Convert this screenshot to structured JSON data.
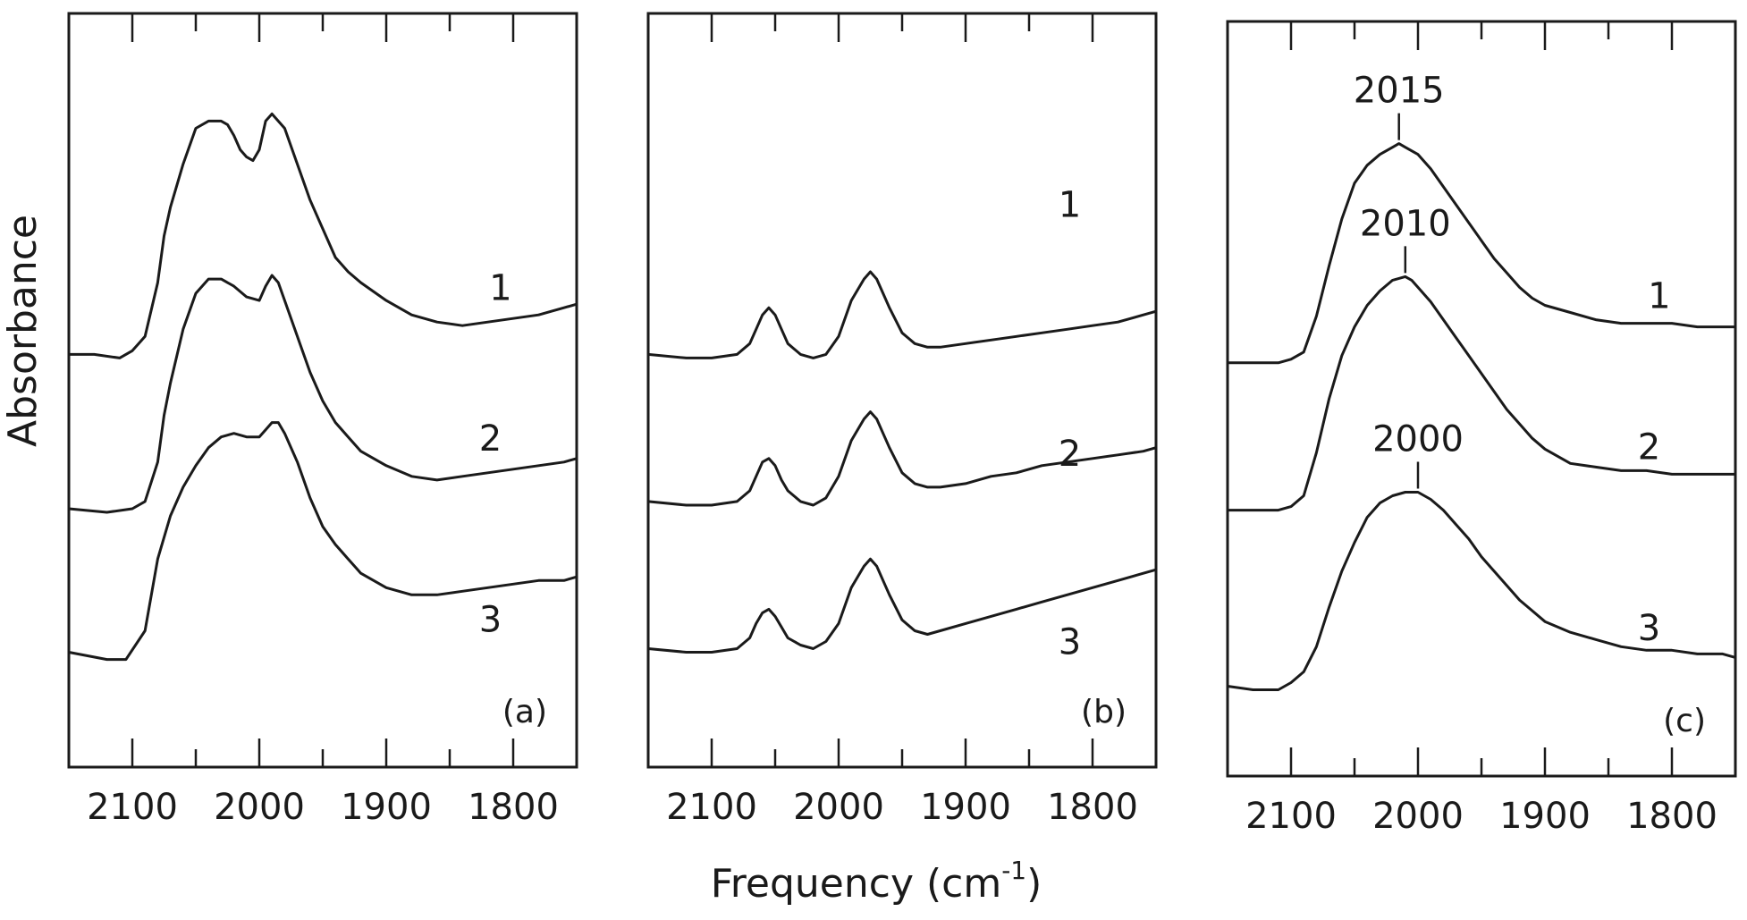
{
  "figure": {
    "ylabel": "Absorbance",
    "xlabel_main": "Frequency  (cm",
    "xlabel_sup": "-1",
    "xlabel_end": ")"
  },
  "chart_data": [
    {
      "type": "line",
      "panel_label": "(a)",
      "xlim": [
        2150,
        1750
      ],
      "xticks_major": [
        2100,
        2000,
        1900,
        1800
      ],
      "tick_labels": [
        "2100",
        "2000",
        "1900",
        "1800"
      ],
      "series": [
        {
          "name": "1",
          "x": [
            2150,
            2130,
            2110,
            2100,
            2090,
            2080,
            2075,
            2070,
            2060,
            2050,
            2040,
            2030,
            2025,
            2020,
            2015,
            2010,
            2005,
            2000,
            1995,
            1990,
            1980,
            1970,
            1960,
            1950,
            1940,
            1930,
            1920,
            1900,
            1880,
            1860,
            1840,
            1820,
            1800,
            1780,
            1760,
            1750
          ],
          "y": [
            0.55,
            0.55,
            0.54,
            0.56,
            0.6,
            0.75,
            0.88,
            0.96,
            1.08,
            1.18,
            1.2,
            1.2,
            1.19,
            1.16,
            1.12,
            1.1,
            1.09,
            1.12,
            1.2,
            1.22,
            1.18,
            1.08,
            0.98,
            0.9,
            0.82,
            0.78,
            0.75,
            0.7,
            0.66,
            0.64,
            0.63,
            0.64,
            0.65,
            0.66,
            0.68,
            0.69
          ]
        },
        {
          "name": "2",
          "x": [
            2150,
            2120,
            2100,
            2090,
            2080,
            2075,
            2070,
            2060,
            2050,
            2040,
            2030,
            2020,
            2010,
            2000,
            1995,
            1990,
            1985,
            1980,
            1970,
            1960,
            1950,
            1940,
            1930,
            1920,
            1900,
            1880,
            1860,
            1840,
            1820,
            1800,
            1780,
            1760,
            1750
          ],
          "y": [
            0.12,
            0.11,
            0.12,
            0.14,
            0.25,
            0.38,
            0.47,
            0.62,
            0.72,
            0.76,
            0.76,
            0.74,
            0.71,
            0.7,
            0.74,
            0.77,
            0.75,
            0.7,
            0.6,
            0.5,
            0.42,
            0.36,
            0.32,
            0.28,
            0.24,
            0.21,
            0.2,
            0.21,
            0.22,
            0.23,
            0.24,
            0.25,
            0.26
          ]
        },
        {
          "name": "3",
          "x": [
            2150,
            2120,
            2105,
            2090,
            2080,
            2070,
            2060,
            2050,
            2040,
            2030,
            2020,
            2010,
            2000,
            1995,
            1990,
            1985,
            1980,
            1970,
            1960,
            1950,
            1940,
            1930,
            1920,
            1900,
            1880,
            1860,
            1840,
            1820,
            1800,
            1780,
            1760,
            1750
          ],
          "y": [
            -0.28,
            -0.3,
            -0.3,
            -0.22,
            -0.02,
            0.1,
            0.18,
            0.24,
            0.29,
            0.32,
            0.33,
            0.32,
            0.32,
            0.34,
            0.36,
            0.36,
            0.33,
            0.25,
            0.15,
            0.07,
            0.02,
            -0.02,
            -0.06,
            -0.1,
            -0.12,
            -0.12,
            -0.11,
            -0.1,
            -0.09,
            -0.08,
            -0.08,
            -0.07
          ]
        }
      ]
    },
    {
      "type": "line",
      "panel_label": "(b)",
      "xlim": [
        2150,
        1750
      ],
      "xticks_major": [
        2100,
        2000,
        1900,
        1800
      ],
      "tick_labels": [
        "2100",
        "2000",
        "1900",
        "1800"
      ],
      "series": [
        {
          "name": "1",
          "x": [
            2150,
            2120,
            2100,
            2080,
            2070,
            2065,
            2060,
            2055,
            2050,
            2045,
            2040,
            2030,
            2020,
            2010,
            2000,
            1990,
            1980,
            1975,
            1970,
            1965,
            1960,
            1950,
            1940,
            1930,
            1920,
            1900,
            1880,
            1860,
            1840,
            1820,
            1800,
            1780,
            1760,
            1750
          ],
          "y": [
            0.55,
            0.54,
            0.54,
            0.55,
            0.58,
            0.62,
            0.66,
            0.68,
            0.66,
            0.62,
            0.58,
            0.55,
            0.54,
            0.55,
            0.6,
            0.7,
            0.76,
            0.78,
            0.76,
            0.72,
            0.68,
            0.61,
            0.58,
            0.57,
            0.57,
            0.58,
            0.59,
            0.6,
            0.61,
            0.62,
            0.63,
            0.64,
            0.66,
            0.67
          ]
        },
        {
          "name": "2",
          "x": [
            2150,
            2120,
            2100,
            2080,
            2070,
            2065,
            2060,
            2055,
            2050,
            2045,
            2040,
            2030,
            2020,
            2010,
            2000,
            1990,
            1980,
            1975,
            1970,
            1965,
            1960,
            1950,
            1940,
            1930,
            1920,
            1900,
            1880,
            1860,
            1840,
            1820,
            1800,
            1780,
            1760,
            1750
          ],
          "y": [
            0.14,
            0.13,
            0.13,
            0.14,
            0.17,
            0.21,
            0.25,
            0.26,
            0.24,
            0.2,
            0.17,
            0.14,
            0.13,
            0.15,
            0.21,
            0.31,
            0.37,
            0.39,
            0.37,
            0.33,
            0.29,
            0.22,
            0.19,
            0.18,
            0.18,
            0.19,
            0.21,
            0.22,
            0.24,
            0.25,
            0.26,
            0.27,
            0.28,
            0.29
          ]
        },
        {
          "name": "3",
          "x": [
            2150,
            2120,
            2100,
            2080,
            2070,
            2065,
            2060,
            2055,
            2050,
            2045,
            2040,
            2030,
            2020,
            2010,
            2000,
            1990,
            1980,
            1975,
            1970,
            1965,
            1960,
            1950,
            1940,
            1930,
            1920,
            1900,
            1880,
            1860,
            1840,
            1820,
            1800,
            1780,
            1760,
            1750
          ],
          "y": [
            -0.27,
            -0.28,
            -0.28,
            -0.27,
            -0.24,
            -0.2,
            -0.17,
            -0.16,
            -0.18,
            -0.21,
            -0.24,
            -0.26,
            -0.27,
            -0.25,
            -0.2,
            -0.1,
            -0.04,
            -0.02,
            -0.04,
            -0.08,
            -0.12,
            -0.19,
            -0.22,
            -0.23,
            -0.22,
            -0.2,
            -0.18,
            -0.16,
            -0.14,
            -0.12,
            -0.1,
            -0.08,
            -0.06,
            -0.05
          ]
        }
      ]
    },
    {
      "type": "line",
      "panel_label": "(c)",
      "xlim": [
        2150,
        1750
      ],
      "xticks_major": [
        2100,
        2000,
        1900,
        1800
      ],
      "tick_labels": [
        "2100",
        "2000",
        "1900",
        "1800"
      ],
      "series": [
        {
          "name": "1",
          "x": [
            2150,
            2130,
            2110,
            2100,
            2090,
            2080,
            2070,
            2060,
            2050,
            2040,
            2030,
            2020,
            2015,
            2010,
            2000,
            1990,
            1980,
            1970,
            1960,
            1950,
            1940,
            1930,
            1920,
            1910,
            1900,
            1880,
            1860,
            1840,
            1820,
            1800,
            1780,
            1760,
            1750
          ],
          "y": [
            0.55,
            0.55,
            0.55,
            0.56,
            0.58,
            0.68,
            0.82,
            0.95,
            1.05,
            1.1,
            1.13,
            1.15,
            1.16,
            1.15,
            1.13,
            1.09,
            1.04,
            0.99,
            0.94,
            0.89,
            0.84,
            0.8,
            0.76,
            0.73,
            0.71,
            0.69,
            0.67,
            0.66,
            0.66,
            0.66,
            0.65,
            0.65,
            0.65
          ]
        },
        {
          "name": "2",
          "x": [
            2150,
            2130,
            2110,
            2100,
            2090,
            2080,
            2070,
            2060,
            2050,
            2040,
            2030,
            2020,
            2010,
            2005,
            2000,
            1990,
            1980,
            1970,
            1960,
            1950,
            1940,
            1930,
            1920,
            1910,
            1900,
            1880,
            1860,
            1840,
            1820,
            1800,
            1780,
            1760,
            1750
          ],
          "y": [
            0.14,
            0.14,
            0.14,
            0.15,
            0.18,
            0.3,
            0.45,
            0.57,
            0.65,
            0.71,
            0.75,
            0.78,
            0.79,
            0.78,
            0.76,
            0.72,
            0.67,
            0.62,
            0.57,
            0.52,
            0.47,
            0.42,
            0.38,
            0.34,
            0.31,
            0.27,
            0.26,
            0.25,
            0.25,
            0.24,
            0.24,
            0.24,
            0.24
          ]
        },
        {
          "name": "3",
          "x": [
            2150,
            2130,
            2110,
            2100,
            2090,
            2080,
            2070,
            2060,
            2050,
            2040,
            2030,
            2020,
            2010,
            2000,
            1990,
            1980,
            1970,
            1960,
            1950,
            1940,
            1930,
            1920,
            1910,
            1900,
            1880,
            1860,
            1840,
            1820,
            1800,
            1780,
            1760,
            1750
          ],
          "y": [
            -0.35,
            -0.36,
            -0.36,
            -0.34,
            -0.31,
            -0.24,
            -0.13,
            -0.03,
            0.05,
            0.12,
            0.16,
            0.18,
            0.19,
            0.19,
            0.17,
            0.14,
            0.1,
            0.06,
            0.01,
            -0.03,
            -0.07,
            -0.11,
            -0.14,
            -0.17,
            -0.2,
            -0.22,
            -0.24,
            -0.25,
            -0.25,
            -0.26,
            -0.26,
            -0.27
          ]
        }
      ],
      "annotations": [
        {
          "label": "2015",
          "x": 2015,
          "series": "1"
        },
        {
          "label": "2010",
          "x": 2010,
          "series": "2"
        },
        {
          "label": "2000",
          "x": 2000,
          "series": "3"
        }
      ]
    }
  ]
}
